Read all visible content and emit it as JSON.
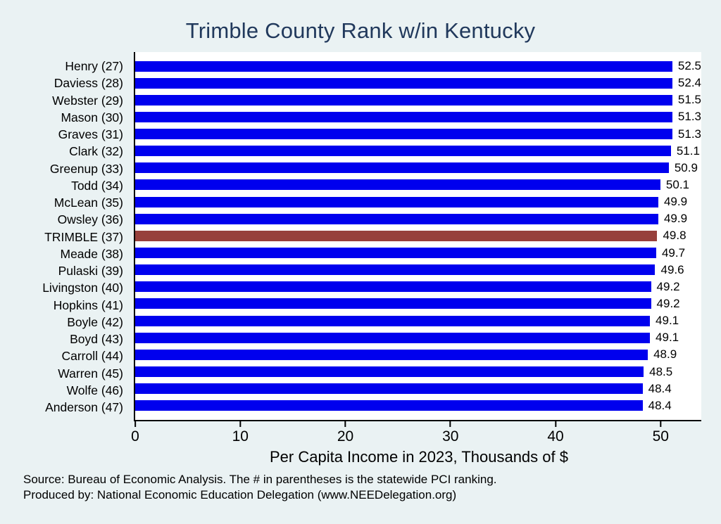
{
  "colors": {
    "background": "#eaf2f3",
    "plot_background": "#ffffff",
    "bar": "#0000ee",
    "highlight_bar": "#97403c",
    "title": "#21395c",
    "axis_text": "#000000"
  },
  "footer": {
    "source_line1": "Source: Bureau of Economic Analysis. The # in parentheses is the statewide PCI ranking.",
    "source_line2": "Produced by: National Economic Education Delegation (www.NEEDelegation.org)"
  },
  "chart_data": {
    "type": "bar",
    "orientation": "horizontal",
    "title": "Trimble County Rank w/in Kentucky",
    "xlabel": "Per Capita Income in 2023, Thousands of $",
    "xlim": [
      0,
      54
    ],
    "xticks": [
      0,
      10,
      20,
      30,
      40,
      50
    ],
    "grid": false,
    "legend": false,
    "value_labels": true,
    "highlight_category": "TRIMBLE (37)",
    "categories": [
      "Henry (27)",
      "Daviess (28)",
      "Webster (29)",
      "Mason (30)",
      "Graves (31)",
      "Clark (32)",
      "Greenup (33)",
      "Todd (34)",
      "McLean (35)",
      "Owsley (36)",
      "TRIMBLE (37)",
      "Meade (38)",
      "Pulaski (39)",
      "Livingston (40)",
      "Hopkins (41)",
      "Boyle (42)",
      "Boyd (43)",
      "Carroll (44)",
      "Warren (45)",
      "Wolfe (46)",
      "Anderson (47)"
    ],
    "values": [
      52.5,
      52.4,
      51.5,
      51.3,
      51.3,
      51.1,
      50.9,
      50.1,
      49.9,
      49.9,
      49.8,
      49.7,
      49.6,
      49.2,
      49.2,
      49.1,
      49.1,
      48.9,
      48.5,
      48.4,
      48.4
    ]
  }
}
